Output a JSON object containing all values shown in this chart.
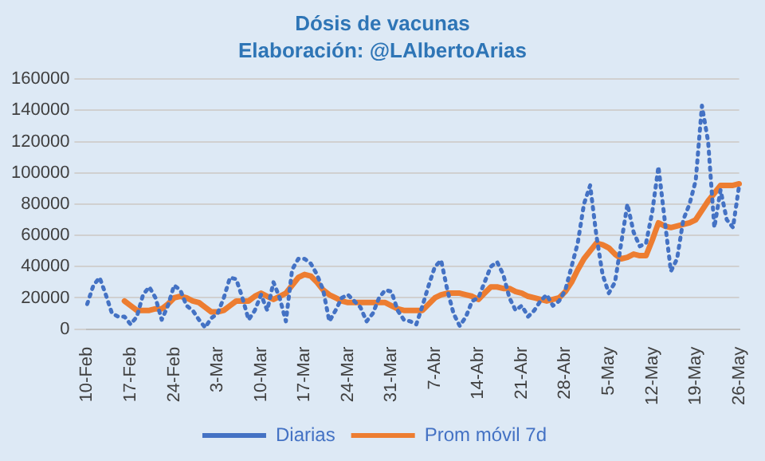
{
  "chart_data": {
    "type": "line",
    "title": "Dósis de vacunas",
    "subtitle": "Elaboración: @LAlbertoArias",
    "categories": [
      "10-Feb",
      null,
      null,
      null,
      null,
      null,
      null,
      "17-Feb",
      null,
      null,
      null,
      null,
      null,
      null,
      "24-Feb",
      null,
      null,
      null,
      null,
      null,
      null,
      "3-Mar",
      null,
      null,
      null,
      null,
      null,
      null,
      "10-Mar",
      null,
      null,
      null,
      null,
      null,
      null,
      "17-Mar",
      null,
      null,
      null,
      null,
      null,
      null,
      "24-Mar",
      null,
      null,
      null,
      null,
      null,
      null,
      "31-Mar",
      null,
      null,
      null,
      null,
      null,
      null,
      "7-Abr",
      null,
      null,
      null,
      null,
      null,
      null,
      "14-Abr",
      null,
      null,
      null,
      null,
      null,
      null,
      "21-Abr",
      null,
      null,
      null,
      null,
      null,
      null,
      "28-Abr",
      null,
      null,
      null,
      null,
      null,
      null,
      "5-May",
      null,
      null,
      null,
      null,
      null,
      null,
      "12-May",
      null,
      null,
      null,
      null,
      null,
      null,
      "19-May",
      null,
      null,
      null,
      null,
      null,
      null,
      "26-May"
    ],
    "series": [
      {
        "name": "Diarias",
        "color": "#4472c4",
        "line_style": "dotted",
        "values": [
          16000,
          28000,
          33000,
          22000,
          10000,
          8000,
          8000,
          3000,
          8000,
          22000,
          27000,
          20000,
          6000,
          15000,
          28000,
          25000,
          15000,
          12000,
          6000,
          1000,
          7000,
          10000,
          20000,
          33000,
          32000,
          20000,
          6000,
          12000,
          22000,
          12000,
          30000,
          20000,
          5000,
          38000,
          45000,
          45000,
          42000,
          35000,
          25000,
          5000,
          12000,
          20000,
          22000,
          18000,
          14000,
          5000,
          10000,
          20000,
          25000,
          24000,
          12000,
          6000,
          5000,
          3000,
          15000,
          28000,
          40000,
          44000,
          25000,
          10000,
          2000,
          8000,
          18000,
          20000,
          30000,
          40000,
          43000,
          35000,
          20000,
          12000,
          15000,
          8000,
          12000,
          18000,
          22000,
          15000,
          18000,
          25000,
          40000,
          55000,
          80000,
          92000,
          60000,
          35000,
          23000,
          30000,
          55000,
          80000,
          62000,
          53000,
          55000,
          75000,
          104000,
          70000,
          37000,
          45000,
          70000,
          80000,
          95000,
          143000,
          120000,
          65000,
          89000,
          70000,
          65000,
          92000
        ]
      },
      {
        "name": "Prom móvil 7d",
        "color": "#ed7d31",
        "line_style": "solid",
        "values": [
          null,
          null,
          null,
          null,
          null,
          null,
          18000,
          15000,
          12000,
          12000,
          12000,
          13000,
          13000,
          16000,
          20000,
          21000,
          20000,
          18000,
          17000,
          14000,
          11000,
          11000,
          12000,
          15000,
          18000,
          18000,
          18000,
          21000,
          23000,
          21000,
          19000,
          21000,
          23000,
          28000,
          33000,
          35000,
          34000,
          30000,
          25000,
          22000,
          20000,
          18000,
          17000,
          17000,
          17000,
          17000,
          17000,
          17000,
          17000,
          15000,
          13000,
          12000,
          12000,
          12000,
          12000,
          16000,
          20000,
          22000,
          23000,
          23000,
          23000,
          22000,
          21000,
          19000,
          23000,
          27000,
          27000,
          26000,
          26000,
          24000,
          23000,
          21000,
          20000,
          19000,
          18000,
          19000,
          20000,
          24000,
          30000,
          38000,
          45000,
          50000,
          55000,
          54000,
          52000,
          48000,
          45000,
          46000,
          48000,
          47000,
          47000,
          57000,
          68000,
          66000,
          65000,
          66000,
          67000,
          68000,
          70000,
          76000,
          82000,
          87000,
          92000,
          92000,
          92000,
          93000
        ]
      }
    ],
    "ylim": [
      0,
      160000
    ],
    "yticks": [
      0,
      20000,
      40000,
      60000,
      80000,
      100000,
      120000,
      140000,
      160000
    ],
    "grid": "y",
    "legend": "bottom",
    "marker": "none"
  }
}
